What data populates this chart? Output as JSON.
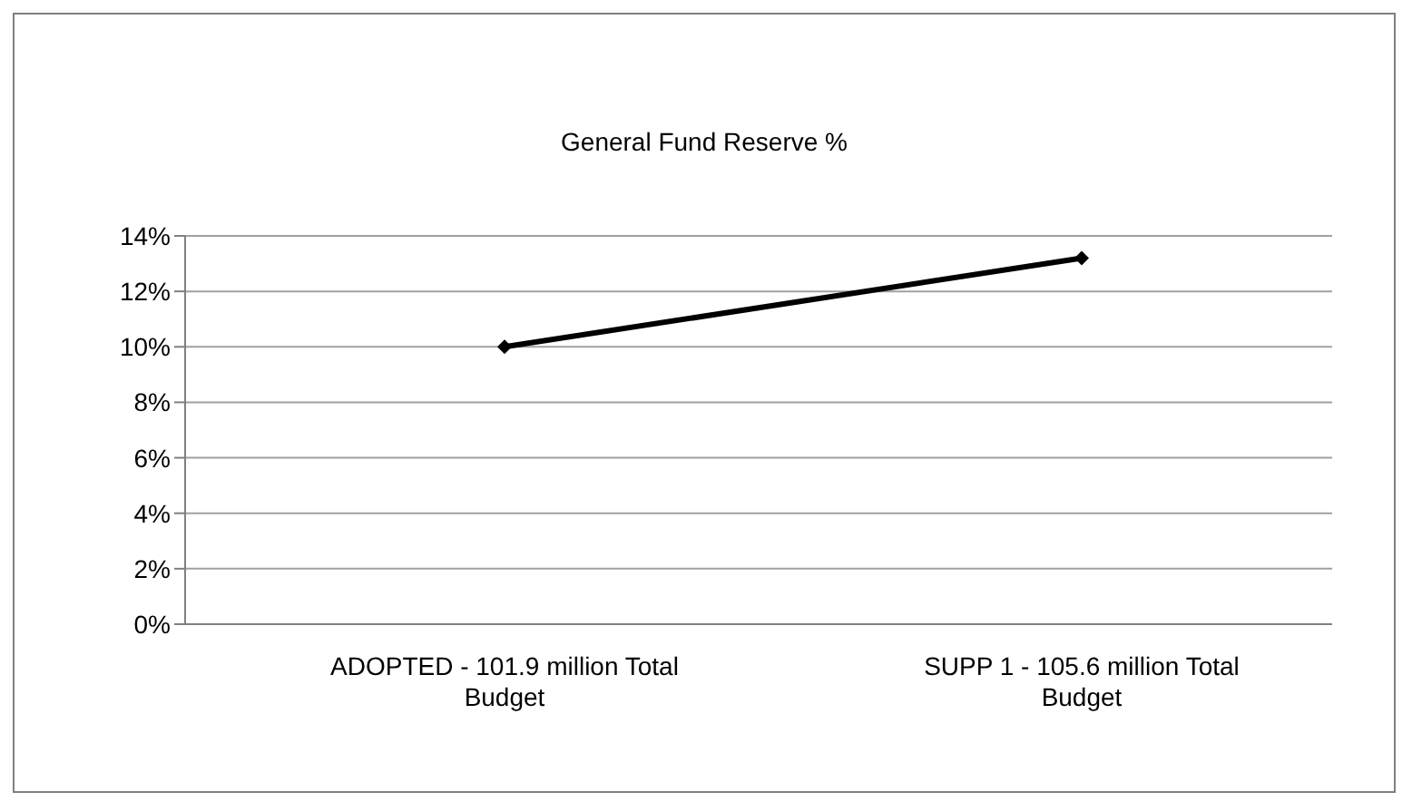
{
  "chart_data": {
    "type": "line",
    "title": "General Fund Reserve %",
    "categories": [
      "ADOPTED -  101.9 million Total Budget",
      "SUPP 1 - 105.6 million Total Budget"
    ],
    "series": [
      {
        "color": "#000000",
        "values": [
          10,
          13.2
        ]
      }
    ],
    "ylim": [
      0,
      14
    ],
    "yticks": [
      {
        "value": 0,
        "label": "0%"
      },
      {
        "value": 2,
        "label": "2%"
      },
      {
        "value": 4,
        "label": "4%"
      },
      {
        "value": 6,
        "label": "6%"
      },
      {
        "value": 8,
        "label": "8%"
      },
      {
        "value": 10,
        "label": "10%"
      },
      {
        "value": 12,
        "label": "12%"
      },
      {
        "value": 14,
        "label": "14%"
      }
    ],
    "grid": "y",
    "marker": "diamond",
    "line_style": "solid",
    "legend": false
  }
}
